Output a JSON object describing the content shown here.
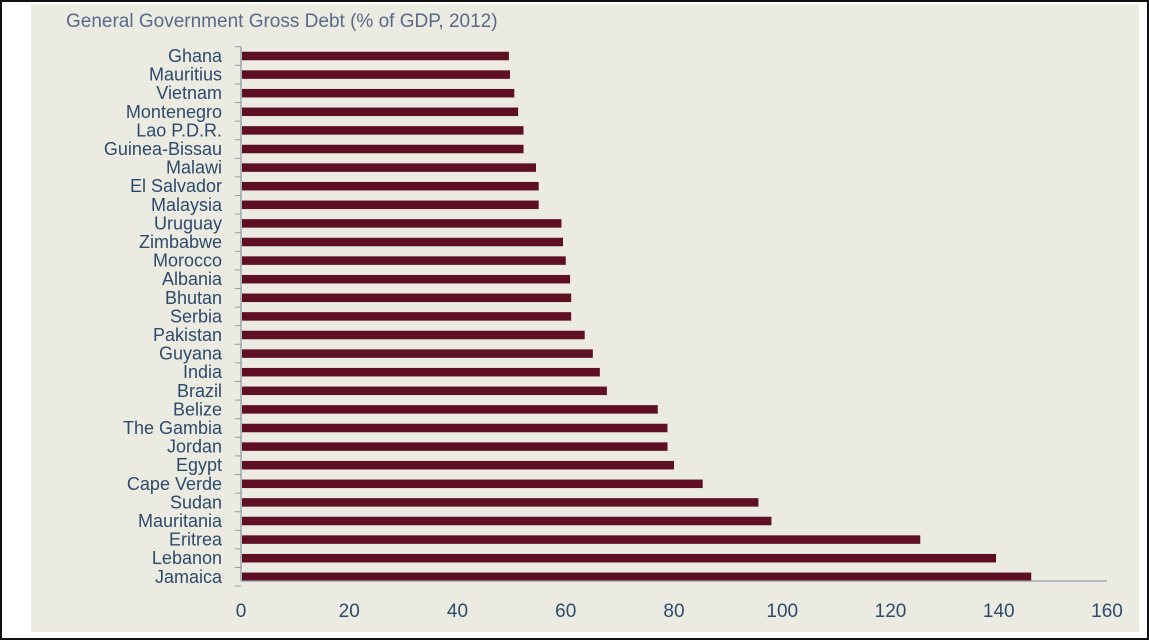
{
  "chart_data": {
    "type": "bar",
    "orientation": "horizontal",
    "title": "General Government Gross Debt (% of GDP, 2012)",
    "xlabel": "",
    "ylabel": "",
    "categories": [
      "Ghana",
      "Mauritius",
      "Vietnam",
      "Montenegro",
      "Lao P.D.R.",
      "Guinea-Bissau",
      "Malawi",
      "El Salvador",
      "Malaysia",
      "Uruguay",
      "Zimbabwe",
      "Morocco",
      "Albania",
      "Bhutan",
      "Serbia",
      "Pakistan",
      "Guyana",
      "India",
      "Brazil",
      "Belize",
      "The Gambia",
      "Jordan",
      "Egypt",
      "Cape Verde",
      "Sudan",
      "Mauritania",
      "Eritrea",
      "Lebanon",
      "Jamaica"
    ],
    "values": [
      49.5,
      49.7,
      50.5,
      51.2,
      52.2,
      52.2,
      54.5,
      55.0,
      55.0,
      59.2,
      59.5,
      60.0,
      60.8,
      61.0,
      61.0,
      63.5,
      65.0,
      66.3,
      67.6,
      77.0,
      78.8,
      78.8,
      80.0,
      85.3,
      95.6,
      98.0,
      125.5,
      139.5,
      146.0
    ],
    "xlim": [
      0,
      160
    ],
    "x_ticks": [
      "0",
      "20",
      "40",
      "60",
      "80",
      "100",
      "120",
      "140",
      "160"
    ],
    "grid": false,
    "legend": "none",
    "colors": {
      "bar": "#5e0f24",
      "background": "#ebebe2",
      "axis": "#8f9ca8",
      "text": "#2e4a6b",
      "title": "#58698a"
    }
  }
}
